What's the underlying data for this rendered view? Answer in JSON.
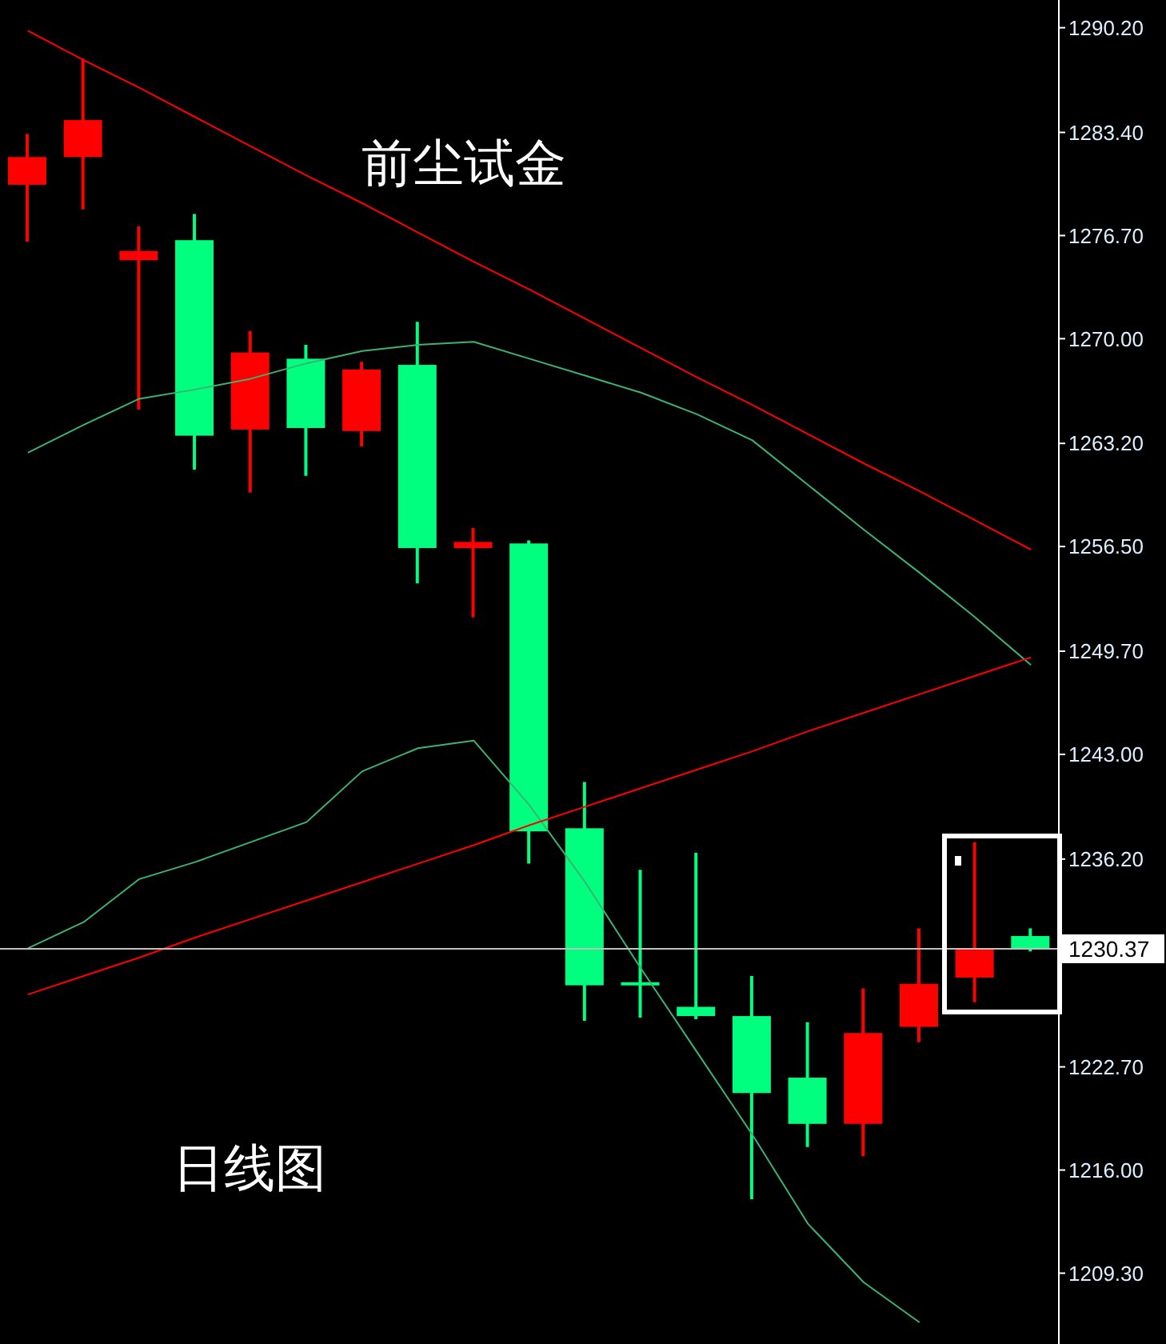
{
  "chart_data": {
    "type": "candlestick",
    "categories": [
      null,
      null,
      null,
      null,
      null,
      null,
      null,
      null,
      null,
      null,
      null,
      null,
      null,
      null,
      null,
      null,
      null,
      null,
      null
    ],
    "ohlc": [
      [
        1280.0,
        1283.3,
        1276.3,
        1281.8
      ],
      [
        1281.8,
        1288.2,
        1278.4,
        1284.2
      ],
      [
        1275.1,
        1277.3,
        1265.4,
        1275.7
      ],
      [
        1276.4,
        1278.1,
        1261.5,
        1263.7
      ],
      [
        1264.1,
        1270.5,
        1260.0,
        1269.1
      ],
      [
        1268.7,
        1269.6,
        1261.1,
        1264.2
      ],
      [
        1264.0,
        1268.5,
        1263.0,
        1268.0
      ],
      [
        1268.3,
        1271.1,
        1254.1,
        1256.4
      ],
      [
        1256.4,
        1257.7,
        1251.9,
        1256.8
      ],
      [
        1256.7,
        1256.9,
        1235.9,
        1238.0
      ],
      [
        1238.2,
        1241.2,
        1225.7,
        1228.0
      ],
      [
        1228.2,
        1235.5,
        1225.9,
        1228.0
      ],
      [
        1226.6,
        1236.6,
        1225.8,
        1226.0
      ],
      [
        1226.0,
        1228.6,
        1214.1,
        1221.0
      ],
      [
        1222.0,
        1225.6,
        1217.5,
        1219.0
      ],
      [
        1219.0,
        1227.8,
        1216.9,
        1224.9
      ],
      [
        1225.3,
        1231.7,
        1224.3,
        1228.1
      ],
      [
        1228.5,
        1237.3,
        1226.9,
        1230.4
      ],
      [
        1231.2,
        1231.7,
        1230.2,
        1230.4
      ]
    ],
    "colors": [
      "#ff0000",
      "#ff0000",
      "#ff0000",
      "#00ff7f",
      "#ff0000",
      "#00ff7f",
      "#ff0000",
      "#00ff7f",
      "#ff0000",
      "#00ff7f",
      "#00ff7f",
      "#00ff7f",
      "#00ff7f",
      "#00ff7f",
      "#00ff7f",
      "#ff0000",
      "#ff0000",
      "#ff0000",
      "#00ff7f"
    ],
    "series": [
      {
        "type": "line",
        "color": "#3cb371",
        "values": [
          1262.6,
          1264.4,
          1266.1,
          1266.7,
          1267.4,
          1268.4,
          1269.2,
          1269.6,
          1269.8,
          1268.7,
          1267.6,
          1266.5,
          1265.1,
          1263.4,
          1260.5,
          1257.6,
          1254.8,
          1251.9,
          1248.8
        ]
      },
      {
        "type": "line",
        "color": "#3cb371",
        "values": [
          1230.4,
          1232.1,
          1234.9,
          1236.0,
          1237.3,
          1238.6,
          1241.9,
          1243.4,
          1243.9,
          1239.7,
          1234.7,
          1229.1,
          1223.7,
          1218.3,
          1212.5,
          1208.7,
          1206.1,
          null,
          null
        ]
      },
      {
        "type": "line",
        "color": "#ff0000",
        "values": [
          1290.0,
          1288.1,
          1286.3,
          1284.4,
          1282.5,
          1280.6,
          1278.8,
          1276.9,
          1275.0,
          1273.2,
          1271.3,
          1269.4,
          1267.5,
          1265.7,
          1263.8,
          1261.9,
          1260.1,
          1258.2,
          1256.3
        ]
      },
      {
        "type": "line",
        "color": "#ff0000",
        "values": [
          1227.4,
          1228.6,
          1229.8,
          1231.1,
          1232.3,
          1233.5,
          1234.7,
          1235.9,
          1237.1,
          1238.4,
          1239.6,
          1240.8,
          1242.0,
          1243.2,
          1244.5,
          1245.7,
          1246.9,
          1248.1,
          1249.3
        ]
      }
    ],
    "ylim": [
      1204.7,
      1292.0
    ],
    "yticks": [
      {
        "value": 1209.3,
        "label": "1209.30"
      },
      {
        "value": 1216.0,
        "label": "1216.00"
      },
      {
        "value": 1222.7,
        "label": "1222.70"
      },
      {
        "value": 1229.5,
        "label": null
      },
      {
        "value": 1236.2,
        "label": "1236.20"
      },
      {
        "value": 1243.0,
        "label": "1243.00"
      },
      {
        "value": 1249.7,
        "label": "1249.70"
      },
      {
        "value": 1256.5,
        "label": "1256.50"
      },
      {
        "value": 1263.2,
        "label": "1263.20"
      },
      {
        "value": 1270.0,
        "label": "1270.00"
      },
      {
        "value": 1276.7,
        "label": "1276.70"
      },
      {
        "value": 1283.4,
        "label": "1283.40"
      },
      {
        "value": 1290.2,
        "label": "1290.20"
      }
    ],
    "tick_labels": "y",
    "grid": false,
    "legend": false,
    "ref_lines": [
      {
        "axis": "y",
        "value": 1230.37,
        "label": "1230.37",
        "color": "#c0c0c0"
      }
    ],
    "annotations": [
      "前尘试金",
      "日线图"
    ]
  }
}
